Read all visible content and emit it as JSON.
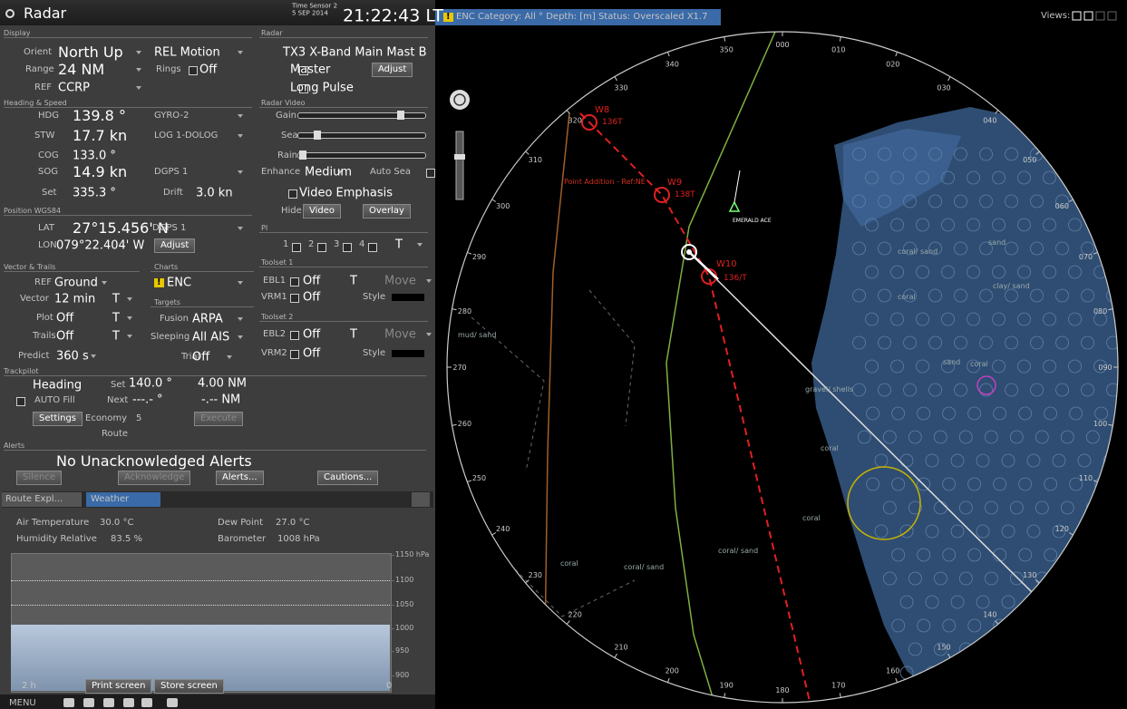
{
  "header": {
    "title": "Radar",
    "sensor": "Time Sensor 2",
    "date": "5 SEP 2014",
    "time": "21:22:43 LT"
  },
  "chart_bar": {
    "badge": "!",
    "text": "ENC  Category: All ° Depth: [m]  Status: Overscaled X1.7",
    "views": "Views:"
  },
  "display": {
    "title": "Display",
    "orient_label": "Orient",
    "orient": "North Up",
    "motion": "REL Motion",
    "range_label": "Range",
    "range": "24 NM",
    "rings_label": "Rings",
    "rings": "Off",
    "ref_label": "REF",
    "ref": "CCRP"
  },
  "heading_speed": {
    "title": "Heading & Speed",
    "hdg_label": "HDG",
    "hdg": "139.8 °",
    "hdg_src": "GYRO-2",
    "stw_label": "STW",
    "stw": "17.7 kn",
    "stw_src": "LOG 1-DOLOG",
    "cog_label": "COG",
    "cog": "133.0 °",
    "sog_label": "SOG",
    "sog": "14.9 kn",
    "sog_src": "DGPS 1",
    "set_label": "Set",
    "set": "335.3 °",
    "drift_label": "Drift",
    "drift": "3.0 kn"
  },
  "position": {
    "title": "Position WGS84",
    "lat_label": "LAT",
    "lat": "27°15.456' N",
    "lat_src": "DGPS 1",
    "lon_label": "LON",
    "lon": "079°22.404' W",
    "adjust": "Adjust"
  },
  "vector": {
    "title": "Vector & Trails",
    "ref_label": "REF",
    "ref": "Ground",
    "vector_label": "Vector",
    "vector": "12 min",
    "vector_mode": "T",
    "plot_label": "Plot",
    "plot": "Off",
    "plot_mode": "T",
    "trails_label": "Trails",
    "trails": "Off",
    "trails_mode": "T",
    "predict_label": "Predict",
    "predict": "360 s"
  },
  "charts": {
    "title": "Charts",
    "badge": "!",
    "enc": "ENC"
  },
  "targets": {
    "title": "Targets",
    "fusion_label": "Fusion",
    "fusion": "ARPA",
    "sleeping_label": "Sleeping",
    "sleeping": "All AIS",
    "trial_label": "Trial",
    "trial": "Off"
  },
  "radar": {
    "title": "Radar",
    "name": "TX3 X-Band Main Mast B",
    "master": "Master",
    "adjust": "Adjust",
    "pulse": "Long Pulse"
  },
  "radar_video": {
    "title": "Radar Video",
    "gain": "Gain",
    "sea": "Sea",
    "rain": "Rain",
    "enhance_label": "Enhance",
    "enhance": "Medium",
    "auto_sea": "Auto Sea",
    "emphasis": "Video Emphasis",
    "hide": "Hide",
    "video": "Video",
    "overlay": "Overlay"
  },
  "pi": {
    "title": "PI",
    "items": [
      "1",
      "2",
      "3",
      "4"
    ],
    "mode": "T"
  },
  "toolset1": {
    "title": "Toolset 1",
    "ebl": "EBL1",
    "ebl_state": "Off",
    "ebl_mode": "T",
    "move": "Move",
    "vrm": "VRM1",
    "vrm_state": "Off",
    "style": "Style"
  },
  "toolset2": {
    "title": "Toolset 2",
    "ebl": "EBL2",
    "ebl_state": "Off",
    "ebl_mode": "T",
    "move": "Move",
    "vrm": "VRM2",
    "vrm_state": "Off",
    "style": "Style"
  },
  "trackpilot": {
    "title": "Trackpilot",
    "mode": "Heading",
    "set_label": "Set",
    "set": "140.0 °",
    "set_dist": "4.00 NM",
    "auto_fill": "AUTO Fill",
    "next_label": "Next",
    "next": "---.- °",
    "next_dist": "-.-- NM",
    "settings": "Settings",
    "economy_label": "Economy",
    "economy": "5",
    "execute": "Execute",
    "route": "Route"
  },
  "alerts": {
    "title": "Alerts",
    "status": "No Unacknowledged Alerts",
    "silence": "Silence",
    "acknowledge": "Acknowledge",
    "alerts": "Alerts...",
    "cautions": "Cautions..."
  },
  "tabs": [
    "Route Expl...",
    "Weather"
  ],
  "weather": {
    "air_label": "Air Temperature",
    "air": "30.0 °C",
    "dew_label": "Dew Point",
    "dew": "27.0 °C",
    "hum_label": "Humidity Relative",
    "hum": "83.5 %",
    "baro_label": "Barometer",
    "baro": "1008 hPa",
    "axis_ticks": [
      "1150 hPa",
      "1100",
      "1050",
      "1000",
      "950",
      "900"
    ],
    "span": "2 h",
    "end": "0"
  },
  "footer": {
    "print": "Print screen",
    "store": "Store screen",
    "menu": "MENU"
  },
  "radar_display": {
    "bearings": [
      "000",
      "010",
      "020",
      "030",
      "040",
      "050",
      "060",
      "070",
      "080",
      "090",
      "100",
      "110",
      "120",
      "130",
      "140",
      "150",
      "160",
      "170",
      "180",
      "190",
      "200",
      "210",
      "220",
      "230",
      "240",
      "250",
      "260",
      "270",
      "280",
      "290",
      "300",
      "310",
      "320",
      "330",
      "340",
      "350"
    ],
    "waypoints": [
      {
        "name": "W8",
        "course": "136T"
      },
      {
        "name": "W9",
        "course": "138T"
      },
      {
        "name": "W10",
        "course": "136/T"
      }
    ],
    "route_label": "Point Addition - Ref:NE",
    "target": "EMERALD ACE",
    "chart_labels": [
      "coral/ sand",
      "sand",
      "coral",
      "clay/ sand",
      "sand",
      "coral",
      "gravel/ shells",
      "coral",
      "mud/ sand",
      "coral",
      "coral/ sand",
      "coral/ sand",
      "coral"
    ]
  }
}
